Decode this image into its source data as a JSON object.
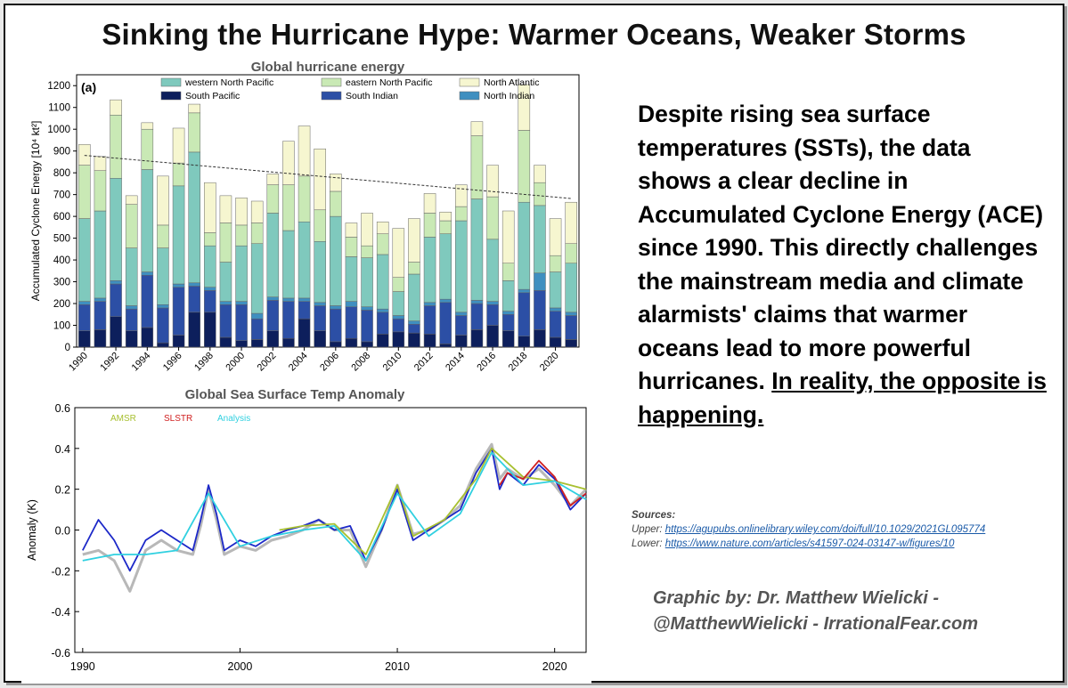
{
  "headline": "Sinking the Hurricane Hype: Warmer Oceans, Weaker Storms",
  "claim": {
    "body": "Despite rising sea surface temperatures (SSTs), the data shows a clear decline in Accumulated Cyclone Energy (ACE) since 1990. This directly challenges the mainstream media and climate alarmists' claims that warmer oceans lead to more powerful hurricanes. ",
    "emphasis": "In reality, the opposite is happening."
  },
  "sources": {
    "header": "Sources:",
    "upper_label": "Upper:",
    "upper_url": "https://agupubs.onlinelibrary.wiley.com/doi/full/10.1029/2021GL095774",
    "lower_label": "Lower:",
    "lower_url": "https://www.nature.com/articles/s41597-024-03147-w/figures/10"
  },
  "credit": {
    "line1": "Graphic by: Dr. Matthew Wielicki -",
    "line2": "@MatthewWielicki - IrrationalFear.com"
  },
  "chart_data": [
    {
      "type": "bar",
      "stacked": true,
      "title": "Global hurricane energy",
      "panel_label": "(a)",
      "xlabel": "",
      "ylabel": "Accumulated Cyclone Energy [10⁴ kt²]",
      "ylim": [
        0,
        1250
      ],
      "yticks": [
        0,
        100,
        200,
        300,
        400,
        500,
        600,
        700,
        800,
        900,
        1000,
        1100,
        1200
      ],
      "categories": [
        "1990",
        "1991",
        "1992",
        "1993",
        "1994",
        "1995",
        "1996",
        "1997",
        "1998",
        "1999",
        "2000",
        "2001",
        "2002",
        "2003",
        "2004",
        "2005",
        "2006",
        "2007",
        "2008",
        "2009",
        "2010",
        "2011",
        "2012",
        "2013",
        "2014",
        "2015",
        "2016",
        "2017",
        "2018",
        "2019",
        "2020",
        "2021"
      ],
      "xtick_labels": [
        "1990",
        "1992",
        "1994",
        "1996",
        "1998",
        "2000",
        "2002",
        "2004",
        "2006",
        "2008",
        "2010",
        "2012",
        "2014",
        "2016",
        "2018",
        "2020"
      ],
      "legend": [
        "western North Pacific",
        "eastern North Pacific",
        "North Atlantic",
        "South Pacific",
        "South Indian",
        "North Indian"
      ],
      "series": [
        {
          "name": "South Pacific",
          "color": "#0d1f5c",
          "values": [
            75,
            80,
            140,
            75,
            90,
            20,
            55,
            160,
            160,
            45,
            30,
            35,
            75,
            40,
            130,
            75,
            25,
            40,
            25,
            60,
            70,
            65,
            60,
            15,
            55,
            80,
            100,
            75,
            50,
            80,
            45,
            35
          ]
        },
        {
          "name": "South Indian",
          "color": "#2c4fa5",
          "values": [
            120,
            130,
            150,
            100,
            240,
            160,
            220,
            120,
            100,
            150,
            165,
            95,
            140,
            170,
            80,
            115,
            150,
            145,
            145,
            100,
            60,
            40,
            130,
            190,
            90,
            120,
            95,
            75,
            200,
            180,
            120,
            110
          ]
        },
        {
          "name": "North Indian",
          "color": "#3f8fc0",
          "values": [
            15,
            15,
            15,
            15,
            15,
            15,
            15,
            15,
            15,
            15,
            15,
            25,
            15,
            15,
            15,
            15,
            15,
            25,
            15,
            15,
            15,
            15,
            15,
            15,
            15,
            15,
            15,
            15,
            15,
            80,
            15,
            15
          ]
        },
        {
          "name": "western North Pacific",
          "color": "#7fc9bd",
          "values": [
            380,
            400,
            470,
            265,
            470,
            260,
            450,
            600,
            190,
            180,
            255,
            320,
            385,
            310,
            350,
            280,
            410,
            205,
            225,
            250,
            110,
            215,
            300,
            300,
            420,
            465,
            285,
            140,
            400,
            310,
            165,
            225
          ]
        },
        {
          "name": "eastern North Pacific",
          "color": "#c9e9b5",
          "values": [
            245,
            185,
            290,
            200,
            185,
            105,
            105,
            180,
            60,
            180,
            95,
            95,
            130,
            210,
            210,
            145,
            115,
            90,
            55,
            95,
            65,
            55,
            110,
            60,
            65,
            290,
            195,
            80,
            330,
            105,
            75,
            90
          ]
        },
        {
          "name": "North Atlantic",
          "color": "#f6f6d0",
          "values": [
            95,
            65,
            70,
            40,
            30,
            225,
            160,
            40,
            230,
            125,
            125,
            100,
            50,
            200,
            230,
            280,
            80,
            65,
            150,
            55,
            225,
            200,
            90,
            40,
            100,
            65,
            145,
            240,
            210,
            80,
            170,
            190
          ]
        }
      ],
      "trend": {
        "start_year": 1990,
        "end_year": 2021,
        "start_value": 880,
        "end_value": 682
      }
    },
    {
      "type": "line",
      "title": "Global Sea Surface Temp Anomaly",
      "xlabel": "",
      "ylabel": "Anomaly (K)",
      "xlim": [
        1989.5,
        2022
      ],
      "ylim": [
        -0.6,
        0.6
      ],
      "xticks": [
        1990,
        2000,
        2010,
        2020
      ],
      "yticks": [
        -0.6,
        -0.4,
        -0.2,
        -0.0,
        0.2,
        0.4,
        0.6
      ],
      "legend": [
        "AMSR",
        "SLSTR",
        "Analysis"
      ],
      "legend_colors": [
        "#a8c030",
        "#d02020",
        "#30d0e0"
      ],
      "series": [
        {
          "name": "Ensemble envelope",
          "color": "#9a9a9a",
          "x": [
            1990,
            1991,
            1992,
            1993,
            1994,
            1995,
            1996,
            1997,
            1997.5,
            1998,
            1998.5,
            1999,
            2000,
            2001,
            2002,
            2003,
            2004,
            2005,
            2006,
            2007,
            2008,
            2009,
            2010,
            2011,
            2012,
            2013,
            2014,
            2015,
            2016,
            2016.5,
            2017,
            2018,
            2019,
            2020,
            2021,
            2022
          ],
          "values": [
            -0.12,
            -0.1,
            -0.15,
            -0.3,
            -0.1,
            -0.05,
            -0.1,
            -0.12,
            0.02,
            0.2,
            0.05,
            -0.12,
            -0.08,
            -0.1,
            -0.05,
            -0.03,
            0.0,
            0.05,
            0.0,
            0.0,
            -0.18,
            0.0,
            0.22,
            -0.02,
            0.0,
            0.05,
            0.12,
            0.3,
            0.42,
            0.25,
            0.3,
            0.25,
            0.3,
            0.22,
            0.12,
            0.2
          ]
        },
        {
          "name": "Reference",
          "color": "#1c28c8",
          "x": [
            1990,
            1991,
            1992,
            1993,
            1994,
            1995,
            1996,
            1997,
            1997.5,
            1998,
            1998.5,
            1999,
            2000,
            2001,
            2002,
            2003,
            2004,
            2005,
            2006,
            2007,
            2008,
            2009,
            2010,
            2011,
            2012,
            2013,
            2014,
            2015,
            2016,
            2016.5,
            2017,
            2018,
            2019,
            2020,
            2021,
            2022
          ],
          "values": [
            -0.1,
            0.05,
            -0.05,
            -0.2,
            -0.05,
            0.0,
            -0.05,
            -0.1,
            0.05,
            0.22,
            0.08,
            -0.1,
            -0.05,
            -0.08,
            -0.03,
            0.0,
            0.02,
            0.05,
            0.0,
            0.02,
            -0.15,
            0.0,
            0.2,
            -0.05,
            0.0,
            0.05,
            0.1,
            0.28,
            0.4,
            0.2,
            0.28,
            0.22,
            0.32,
            0.25,
            0.1,
            0.18
          ]
        },
        {
          "name": "AMSR",
          "color": "#a8c030",
          "x": [
            2002.5,
            2004,
            2006,
            2008,
            2010,
            2011,
            2013,
            2015,
            2016,
            2018,
            2020,
            2022
          ],
          "values": [
            0.0,
            0.02,
            0.03,
            -0.12,
            0.22,
            -0.03,
            0.05,
            0.25,
            0.4,
            0.26,
            0.24,
            0.2
          ]
        },
        {
          "name": "SLSTR",
          "color": "#d02020",
          "x": [
            2016.5,
            2017,
            2018,
            2019,
            2020,
            2021,
            2022
          ],
          "values": [
            0.22,
            0.28,
            0.25,
            0.34,
            0.26,
            0.12,
            0.18
          ]
        },
        {
          "name": "Analysis",
          "color": "#30d0e0",
          "x": [
            1990,
            1992,
            1994,
            1996,
            1998,
            2000,
            2002,
            2004,
            2006,
            2008,
            2010,
            2012,
            2014,
            2016,
            2018,
            2020,
            2022
          ],
          "values": [
            -0.15,
            -0.12,
            -0.12,
            -0.1,
            0.18,
            -0.08,
            -0.03,
            0.0,
            0.02,
            -0.15,
            0.18,
            -0.03,
            0.08,
            0.38,
            0.22,
            0.24,
            0.15
          ]
        }
      ]
    }
  ]
}
